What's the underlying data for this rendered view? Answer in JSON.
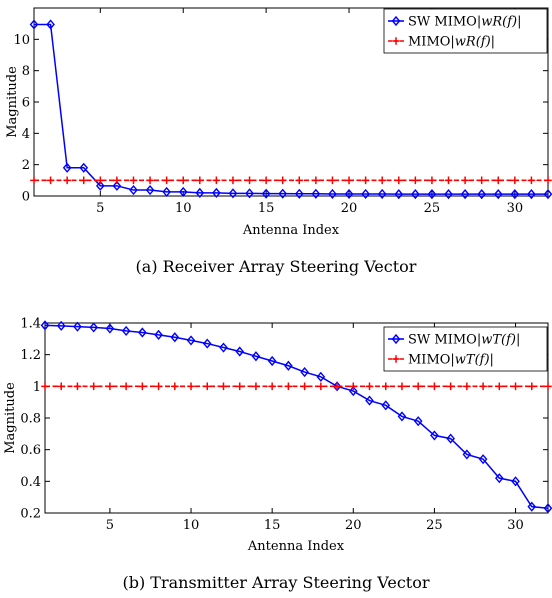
{
  "chart_data": [
    {
      "type": "line",
      "caption": "(a) Receiver Array Steering Vector",
      "xlabel": "Antenna Index",
      "ylabel": "Magnitude",
      "xlim": [
        1,
        32
      ],
      "ylim": [
        0,
        12
      ],
      "xticks": [
        5,
        10,
        15,
        20,
        25,
        30
      ],
      "yticks": [
        0,
        2,
        4,
        6,
        8,
        10
      ],
      "grid": false,
      "legend_position": "top-right",
      "x": [
        1,
        2,
        3,
        4,
        5,
        6,
        7,
        8,
        9,
        10,
        11,
        12,
        13,
        14,
        15,
        16,
        17,
        18,
        19,
        20,
        21,
        22,
        23,
        24,
        25,
        26,
        27,
        28,
        29,
        30,
        31,
        32
      ],
      "series": [
        {
          "name": "SW MIMO|w_R(f)|",
          "legend_plain": "SW MIMO",
          "legend_math": "|wR(f)|",
          "color": "#0000ff",
          "marker": "diamond",
          "values": [
            10.95,
            10.95,
            1.8,
            1.8,
            0.65,
            0.65,
            0.38,
            0.38,
            0.26,
            0.26,
            0.2,
            0.2,
            0.17,
            0.17,
            0.15,
            0.15,
            0.14,
            0.14,
            0.13,
            0.13,
            0.13,
            0.13,
            0.12,
            0.12,
            0.12,
            0.12,
            0.12,
            0.12,
            0.12,
            0.12,
            0.12,
            0.12
          ]
        },
        {
          "name": "MIMO|w_R(f)|",
          "legend_plain": "MIMO",
          "legend_math": "|wR(f)|",
          "color": "#ff0000",
          "marker": "plus",
          "dashed": true,
          "values": [
            1,
            1,
            1,
            1,
            1,
            1,
            1,
            1,
            1,
            1,
            1,
            1,
            1,
            1,
            1,
            1,
            1,
            1,
            1,
            1,
            1,
            1,
            1,
            1,
            1,
            1,
            1,
            1,
            1,
            1,
            1,
            1
          ]
        }
      ]
    },
    {
      "type": "line",
      "caption": "(b) Transmitter Array Steering Vector",
      "xlabel": "Antenna Index",
      "ylabel": "Magnitude",
      "xlim": [
        1,
        32
      ],
      "ylim": [
        0.2,
        1.4
      ],
      "xticks": [
        5,
        10,
        15,
        20,
        25,
        30
      ],
      "yticks": [
        0.2,
        0.4,
        0.6,
        0.8,
        1,
        1.2,
        1.4
      ],
      "grid": false,
      "legend_position": "top-right",
      "x": [
        1,
        2,
        3,
        4,
        5,
        6,
        7,
        8,
        9,
        10,
        11,
        12,
        13,
        14,
        15,
        16,
        17,
        18,
        19,
        20,
        21,
        22,
        23,
        24,
        25,
        26,
        27,
        28,
        29,
        30,
        31,
        32
      ],
      "series": [
        {
          "name": "SW MIMO|w_T(f)|",
          "legend_plain": "SW MIMO",
          "legend_math": "|wT(f)|",
          "color": "#0000ff",
          "marker": "diamond",
          "values": [
            1.385,
            1.382,
            1.377,
            1.372,
            1.365,
            1.35,
            1.34,
            1.325,
            1.31,
            1.29,
            1.27,
            1.245,
            1.22,
            1.19,
            1.16,
            1.13,
            1.09,
            1.06,
            1.0,
            0.97,
            0.91,
            0.88,
            0.81,
            0.78,
            0.69,
            0.67,
            0.57,
            0.54,
            0.42,
            0.4,
            0.24,
            0.23
          ]
        },
        {
          "name": "MIMO|w_T(f)|",
          "legend_plain": "MIMO",
          "legend_math": "|wT(f)|",
          "color": "#ff0000",
          "marker": "plus",
          "dashed": true,
          "values": [
            1,
            1,
            1,
            1,
            1,
            1,
            1,
            1,
            1,
            1,
            1,
            1,
            1,
            1,
            1,
            1,
            1,
            1,
            1,
            1,
            1,
            1,
            1,
            1,
            1,
            1,
            1,
            1,
            1,
            1,
            1,
            1
          ]
        }
      ]
    }
  ]
}
